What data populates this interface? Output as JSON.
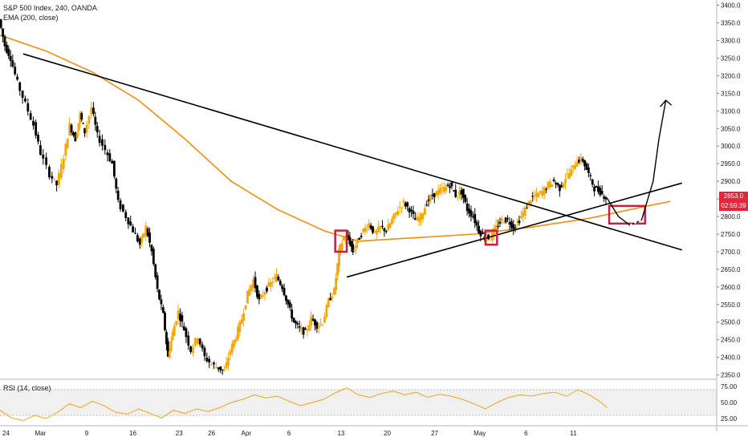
{
  "header": {
    "title": "S&P 500 Index, 240, OANDA",
    "ema_label": "EMA (200, close)",
    "rsi_label": "RSI (14, close)"
  },
  "price_badge": {
    "value": "2853.0",
    "countdown": "02:59:39",
    "color": "#e0283a"
  },
  "colors": {
    "bull": "#f7a600",
    "bear": "#000000",
    "ema": "#f28c13",
    "rsi": "#f2a21c",
    "highlight": "#c8203c",
    "trendline": "#000000"
  },
  "chart_data": [
    {
      "type": "candlestick",
      "title": "S&P 500 Index, 240, OANDA",
      "y_ticks": [
        2350,
        2400,
        2450,
        2500,
        2550,
        2600,
        2650,
        2700,
        2750,
        2800,
        2850,
        2900,
        2950,
        3000,
        3050,
        3100,
        3150,
        3200,
        3250,
        3300,
        3350,
        3400
      ],
      "y_tick_labels": [
        "2350.0",
        "2400.0",
        "2450.0",
        "2500.0",
        "2550.0",
        "2600.0",
        "2650.0",
        "2700.0",
        "2750.0",
        "2800.0",
        "2850.0",
        "2900.0",
        "2950.0",
        "3000.0",
        "3050.0",
        "3100.0",
        "3150.0",
        "3200.0",
        "3250.0",
        "3300.0",
        "3350.0",
        "3400.0"
      ],
      "ylim": [
        2340,
        3415
      ],
      "x_tick_labels": [
        "24",
        "Mar",
        "9",
        "16",
        "23",
        "26",
        "Apr",
        "6",
        "13",
        "20",
        "27",
        "May",
        "6",
        "11"
      ],
      "price_path": [
        [
          24.0,
          3360
        ],
        [
          24.5,
          3285
        ],
        [
          25.0,
          3250
        ],
        [
          25.6,
          3180
        ],
        [
          26.3,
          3120
        ],
        [
          27.0,
          3060
        ],
        [
          27.6,
          2980
        ],
        [
          28.4,
          2920
        ],
        [
          29.0,
          2890
        ],
        [
          29.6,
          2970
        ],
        [
          30.1,
          3060
        ],
        [
          30.6,
          3020
        ],
        [
          31.0,
          3090
        ],
        [
          31.4,
          3040
        ],
        [
          32.0,
          3110
        ],
        [
          32.5,
          3030
        ],
        [
          33.2,
          2990
        ],
        [
          33.8,
          2950
        ],
        [
          34.3,
          2840
        ],
        [
          35.0,
          2800
        ],
        [
          35.6,
          2760
        ],
        [
          36.2,
          2720
        ],
        [
          36.7,
          2770
        ],
        [
          37.2,
          2700
        ],
        [
          37.7,
          2590
        ],
        [
          38.2,
          2520
        ],
        [
          38.6,
          2400
        ],
        [
          39.0,
          2470
        ],
        [
          39.5,
          2530
        ],
        [
          40.0,
          2480
        ],
        [
          40.6,
          2420
        ],
        [
          41.2,
          2460
        ],
        [
          41.8,
          2400
        ],
        [
          42.4,
          2380
        ],
        [
          43.0,
          2370
        ],
        [
          43.5,
          2360
        ],
        [
          44.0,
          2420
        ],
        [
          44.5,
          2460
        ],
        [
          45.0,
          2510
        ],
        [
          45.5,
          2580
        ],
        [
          46.0,
          2620
        ],
        [
          46.5,
          2560
        ],
        [
          47.0,
          2590
        ],
        [
          47.5,
          2610
        ],
        [
          48.0,
          2630
        ],
        [
          48.5,
          2600
        ],
        [
          49.0,
          2550
        ],
        [
          49.5,
          2500
        ],
        [
          50.0,
          2480
        ],
        [
          50.5,
          2470
        ],
        [
          51.0,
          2510
        ],
        [
          51.5,
          2490
        ],
        [
          52.0,
          2500
        ],
        [
          52.5,
          2560
        ],
        [
          53.0,
          2590
        ],
        [
          53.4,
          2700
        ],
        [
          53.8,
          2740
        ],
        [
          54.2,
          2740
        ],
        [
          54.6,
          2700
        ],
        [
          55.0,
          2730
        ],
        [
          55.5,
          2760
        ],
        [
          56.0,
          2780
        ],
        [
          56.5,
          2750
        ],
        [
          57.0,
          2770
        ],
        [
          57.5,
          2760
        ],
        [
          58.0,
          2790
        ],
        [
          58.5,
          2820
        ],
        [
          59.0,
          2840
        ],
        [
          59.5,
          2820
        ],
        [
          60.0,
          2790
        ],
        [
          60.5,
          2800
        ],
        [
          61.0,
          2840
        ],
        [
          61.5,
          2860
        ],
        [
          62.0,
          2870
        ],
        [
          62.5,
          2880
        ],
        [
          63.0,
          2890
        ],
        [
          63.5,
          2860
        ],
        [
          64.0,
          2870
        ],
        [
          64.5,
          2820
        ],
        [
          65.0,
          2800
        ],
        [
          65.5,
          2760
        ],
        [
          66.0,
          2740
        ],
        [
          66.5,
          2740
        ],
        [
          67.0,
          2770
        ],
        [
          67.5,
          2790
        ],
        [
          68.0,
          2790
        ],
        [
          68.5,
          2770
        ],
        [
          69.0,
          2790
        ],
        [
          69.5,
          2820
        ],
        [
          70.0,
          2850
        ],
        [
          70.5,
          2860
        ],
        [
          71.0,
          2870
        ],
        [
          71.5,
          2890
        ],
        [
          72.0,
          2900
        ],
        [
          72.5,
          2880
        ],
        [
          73.0,
          2910
        ],
        [
          73.5,
          2930
        ],
        [
          74.0,
          2960
        ],
        [
          74.5,
          2960
        ],
        [
          75.0,
          2920
        ],
        [
          75.5,
          2880
        ],
        [
          76.0,
          2870
        ],
        [
          76.5,
          2853
        ]
      ],
      "ema_200": [
        [
          24.0,
          3315
        ],
        [
          28.0,
          3270
        ],
        [
          32.0,
          3210
        ],
        [
          36.0,
          3130
        ],
        [
          40.0,
          3020
        ],
        [
          44.0,
          2900
        ],
        [
          48.0,
          2820
        ],
        [
          52.0,
          2760
        ],
        [
          55.0,
          2730
        ],
        [
          60.0,
          2740
        ],
        [
          65.0,
          2750
        ],
        [
          70.0,
          2770
        ],
        [
          75.0,
          2795
        ],
        [
          80.0,
          2830
        ],
        [
          82.0,
          2843
        ]
      ],
      "trendlines": [
        {
          "from": [
            26.0,
            3262
          ],
          "to": [
            83.0,
            2705
          ]
        },
        {
          "from": [
            54.0,
            2628
          ],
          "to": [
            83.0,
            2895
          ]
        }
      ],
      "projection_path": [
        [
          76.5,
          2853
        ],
        [
          77.5,
          2800
        ],
        [
          78.5,
          2775
        ],
        [
          79.5,
          2790
        ],
        [
          80.5,
          2900
        ],
        [
          81.0,
          3020
        ],
        [
          81.6,
          3130
        ]
      ],
      "projection_dashed_segment": [
        [
          78.5,
          2775
        ],
        [
          79.7,
          2795
        ]
      ],
      "highlight_boxes": [
        {
          "x": [
            53.0,
            54.0
          ],
          "y": [
            2700,
            2760
          ]
        },
        {
          "x": [
            66.0,
            67.0
          ],
          "y": [
            2720,
            2760
          ]
        },
        {
          "x": [
            76.7,
            79.8
          ],
          "y": [
            2780,
            2830
          ]
        }
      ]
    },
    {
      "type": "line",
      "title": "RSI (14, close)",
      "ylim": [
        15,
        85
      ],
      "y_ticks": [
        25,
        50,
        75
      ],
      "y_tick_labels": [
        "25.00",
        "50.00",
        "75.00"
      ],
      "band": [
        30,
        70
      ],
      "series": [
        {
          "values": [
            [
              24.0,
              38
            ],
            [
              25.0,
              26
            ],
            [
              26.0,
              22
            ],
            [
              27.0,
              30
            ],
            [
              28.0,
              25
            ],
            [
              29.0,
              35
            ],
            [
              30.0,
              48
            ],
            [
              31.0,
              42
            ],
            [
              32.0,
              52
            ],
            [
              33.0,
              45
            ],
            [
              34.0,
              35
            ],
            [
              35.0,
              32
            ],
            [
              36.0,
              40
            ],
            [
              37.0,
              33
            ],
            [
              38.0,
              26
            ],
            [
              39.0,
              38
            ],
            [
              40.0,
              33
            ],
            [
              41.0,
              40
            ],
            [
              42.0,
              36
            ],
            [
              43.0,
              42
            ],
            [
              44.0,
              50
            ],
            [
              45.0,
              55
            ],
            [
              46.0,
              62
            ],
            [
              47.0,
              57
            ],
            [
              48.0,
              60
            ],
            [
              49.0,
              52
            ],
            [
              50.0,
              45
            ],
            [
              51.0,
              50
            ],
            [
              52.0,
              55
            ],
            [
              53.0,
              65
            ],
            [
              54.0,
              73
            ],
            [
              55.0,
              62
            ],
            [
              56.0,
              58
            ],
            [
              57.0,
              64
            ],
            [
              58.0,
              68
            ],
            [
              59.0,
              62
            ],
            [
              60.0,
              66
            ],
            [
              61.0,
              58
            ],
            [
              62.0,
              63
            ],
            [
              63.0,
              60
            ],
            [
              64.0,
              55
            ],
            [
              65.0,
              48
            ],
            [
              66.0,
              40
            ],
            [
              67.0,
              50
            ],
            [
              68.0,
              58
            ],
            [
              69.0,
              62
            ],
            [
              70.0,
              60
            ],
            [
              71.0,
              64
            ],
            [
              72.0,
              66
            ],
            [
              73.0,
              60
            ],
            [
              74.0,
              70
            ],
            [
              75.0,
              62
            ],
            [
              76.0,
              50
            ],
            [
              76.5,
              42
            ]
          ]
        }
      ]
    }
  ]
}
